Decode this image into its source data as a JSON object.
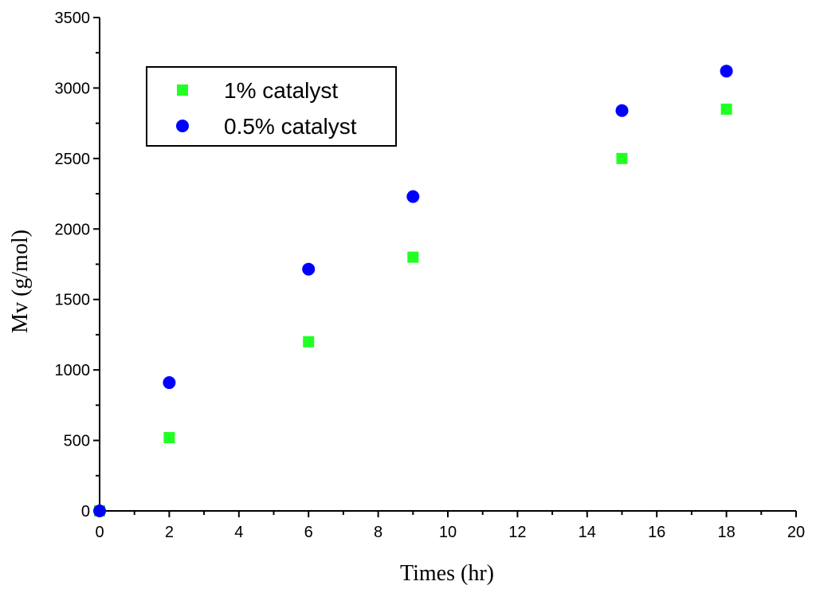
{
  "chart_data": {
    "type": "scatter",
    "title": "",
    "xlabel": "Times (hr)",
    "ylabel": "Mv (g/mol)",
    "xlim": [
      0,
      20
    ],
    "ylim": [
      0,
      3500
    ],
    "xticks": [
      0,
      2,
      4,
      6,
      8,
      10,
      12,
      14,
      16,
      18,
      20
    ],
    "yticks": [
      0,
      500,
      1000,
      1500,
      2000,
      2500,
      3000,
      3500
    ],
    "grid": false,
    "legend_position": "top-left",
    "series": [
      {
        "name": "1% catalyst",
        "marker": "square",
        "color": "#22ff22",
        "x": [
          0,
          2,
          6,
          9,
          15,
          18
        ],
        "y": [
          0,
          520,
          1200,
          1800,
          2500,
          2850
        ]
      },
      {
        "name": "0.5% catalyst",
        "marker": "circle",
        "color": "#0000ff",
        "x": [
          0,
          2,
          6,
          9,
          15,
          18
        ],
        "y": [
          0,
          910,
          1715,
          2230,
          2840,
          3120
        ]
      }
    ]
  }
}
